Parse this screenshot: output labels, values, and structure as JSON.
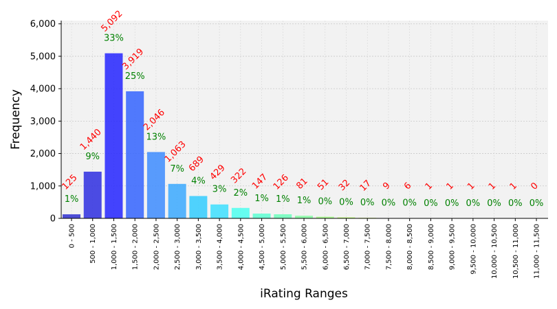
{
  "chart_data": {
    "type": "bar",
    "xlabel": "iRating Ranges",
    "ylabel": "Frequency",
    "ylim": [
      0,
      6100
    ],
    "yticks": [
      "0",
      "1,000",
      "2,000",
      "3,000",
      "4,000",
      "5,000",
      "6,000"
    ],
    "ytick_values": [
      0,
      1000,
      2000,
      3000,
      4000,
      5000,
      6000
    ],
    "grid": true,
    "categories": [
      "0 - 500",
      "500 - 1,000",
      "1,000 - 1,500",
      "1,500 - 2,000",
      "2,000 - 2,500",
      "2,500 - 3,000",
      "3,000 - 3,500",
      "3,500 - 4,000",
      "4,000 - 4,500",
      "4,500 - 5,000",
      "5,000 - 5,500",
      "5,500 - 6,000",
      "6,000 - 6,500",
      "6,500 - 7,000",
      "7,000 - 7,500",
      "7,500 - 8,000",
      "8,000 - 8,500",
      "8,500 - 9,000",
      "9,000 - 9,500",
      "9,500 - 10,000",
      "10,000 - 10,500",
      "10,500 - 11,000",
      "11,000 - 11,500"
    ],
    "values": [
      125,
      1440,
      5092,
      3919,
      2046,
      1063,
      689,
      429,
      322,
      147,
      126,
      81,
      51,
      32,
      17,
      9,
      6,
      1,
      1,
      1,
      1,
      1,
      0
    ],
    "count_labels": [
      "125",
      "1,440",
      "5,092",
      "3,919",
      "2,046",
      "1,063",
      "689",
      "429",
      "322",
      "147",
      "126",
      "81",
      "51",
      "32",
      "17",
      "9",
      "6",
      "1",
      "1",
      "1",
      "1",
      "1",
      "0"
    ],
    "percent_labels": [
      "1%",
      "9%",
      "33%",
      "25%",
      "13%",
      "7%",
      "4%",
      "3%",
      "2%",
      "1%",
      "1%",
      "1%",
      "0%",
      "0%",
      "0%",
      "0%",
      "0%",
      "0%",
      "0%",
      "0%",
      "0%",
      "0%",
      "0%"
    ],
    "colors": [
      "#2f2fd0",
      "#2e2ee0",
      "#2525ff",
      "#3464ff",
      "#3d8cff",
      "#3ba9ff",
      "#33ccff",
      "#3ddfff",
      "#4dfff0",
      "#5cffd2",
      "#6dffbc",
      "#86ffa3",
      "#a3ff86",
      "#baff6d",
      "#d2ff5c",
      "#f0ff4d",
      "#ffe236",
      "#ffc530",
      "#ffa828",
      "#ff8a20",
      "#ff6c18",
      "#ff4e10",
      "#ff3008"
    ],
    "colors_note_alpha": 0.85,
    "count_label_color": "#ff0000",
    "percent_label_color": "#008000",
    "plot_background": "#f2f2f2"
  }
}
